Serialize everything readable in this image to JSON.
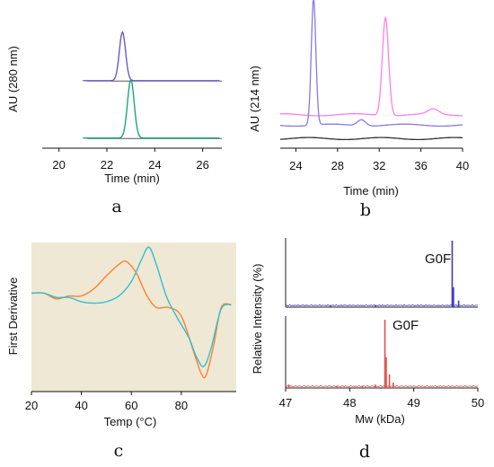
{
  "chart_data": [
    {
      "panel": "a",
      "type": "line",
      "xlabel": "Time (min)",
      "ylabel": "AU (280 nm)",
      "xlim": [
        19.3,
        26.8
      ],
      "xticks": [
        20,
        22,
        24,
        26
      ],
      "series": [
        {
          "color": "#6a5acd",
          "baseline": 0.78,
          "peaks": [
            {
              "x": 22.65,
              "height": 0.6,
              "width": 0.13
            }
          ]
        },
        {
          "color": "#1aa67a",
          "baseline": 0.07,
          "peaks": [
            {
              "x": 23.0,
              "height": 0.72,
              "width": 0.14
            }
          ]
        }
      ],
      "grid": false
    },
    {
      "panel": "b",
      "type": "line",
      "xlabel": "Time (min)",
      "ylabel": "AU (214 nm)",
      "xlim": [
        22.5,
        40
      ],
      "xticks": [
        24,
        28,
        32,
        36,
        40
      ],
      "series": [
        {
          "color": "#ff7fe8",
          "baseline": 0.28,
          "peaks": [
            {
              "x": 32.6,
              "height": 0.95,
              "width": 0.3
            },
            {
              "x": 37.2,
              "height": 0.05,
              "width": 0.5
            }
          ]
        },
        {
          "color": "#8a7ae0",
          "baseline": 0.18,
          "peaks": [
            {
              "x": 25.7,
              "height": 1.22,
              "width": 0.22
            },
            {
              "x": 30.3,
              "height": 0.06,
              "width": 0.4
            }
          ]
        },
        {
          "color": "#333333",
          "baseline": 0.05,
          "peaks": []
        }
      ],
      "grid": false
    },
    {
      "panel": "c",
      "type": "line",
      "xlabel": "Temp (°C)",
      "ylabel": "First Derivative",
      "xlim": [
        20,
        102
      ],
      "xticks": [
        20,
        40,
        60,
        80
      ],
      "background": "#eee8d5",
      "series": [
        {
          "color": "#ff8030",
          "points": [
            [
              20,
              0.66
            ],
            [
              25,
              0.66
            ],
            [
              30,
              0.62
            ],
            [
              35,
              0.64
            ],
            [
              40,
              0.64
            ],
            [
              45,
              0.69
            ],
            [
              50,
              0.78
            ],
            [
              55,
              0.86
            ],
            [
              58,
              0.88
            ],
            [
              62,
              0.8
            ],
            [
              66,
              0.65
            ],
            [
              70,
              0.56
            ],
            [
              75,
              0.56
            ],
            [
              80,
              0.5
            ],
            [
              85,
              0.25
            ],
            [
              88,
              0.1
            ],
            [
              90,
              0.09
            ],
            [
              93,
              0.3
            ],
            [
              96,
              0.56
            ],
            [
              100,
              0.58
            ]
          ]
        },
        {
          "color": "#30c0d0",
          "points": [
            [
              20,
              0.66
            ],
            [
              25,
              0.66
            ],
            [
              30,
              0.63
            ],
            [
              35,
              0.63
            ],
            [
              40,
              0.6
            ],
            [
              45,
              0.59
            ],
            [
              50,
              0.6
            ],
            [
              55,
              0.64
            ],
            [
              60,
              0.74
            ],
            [
              64,
              0.89
            ],
            [
              67,
              0.98
            ],
            [
              70,
              0.86
            ],
            [
              74,
              0.64
            ],
            [
              78,
              0.5
            ],
            [
              83,
              0.35
            ],
            [
              86,
              0.22
            ],
            [
              89,
              0.15
            ],
            [
              92,
              0.28
            ],
            [
              96,
              0.55
            ],
            [
              100,
              0.58
            ]
          ]
        }
      ],
      "grid": false
    },
    {
      "panel": "d",
      "type": "bar",
      "xlabel": "Mw (kDa)",
      "ylabel": "Relative Intensity (%)",
      "xlim": [
        47,
        50
      ],
      "xticks": [
        47,
        48,
        49,
        50
      ],
      "series": [
        {
          "color": "#3a3acd",
          "label": "G0F",
          "peaks": [
            [
              49.6,
              1.0
            ],
            [
              49.62,
              0.3
            ],
            [
              49.7,
              0.1
            ],
            [
              48.4,
              0.03
            ],
            [
              47.7,
              0.02
            ]
          ]
        },
        {
          "color": "#e05050",
          "label": "G0F",
          "peaks": [
            [
              48.55,
              1.0
            ],
            [
              48.57,
              0.45
            ],
            [
              48.62,
              0.2
            ],
            [
              48.68,
              0.08
            ],
            [
              48.4,
              0.05
            ],
            [
              48.2,
              0.03
            ],
            [
              47.8,
              0.03
            ],
            [
              47.05,
              0.05
            ]
          ]
        }
      ],
      "grid": false
    }
  ]
}
